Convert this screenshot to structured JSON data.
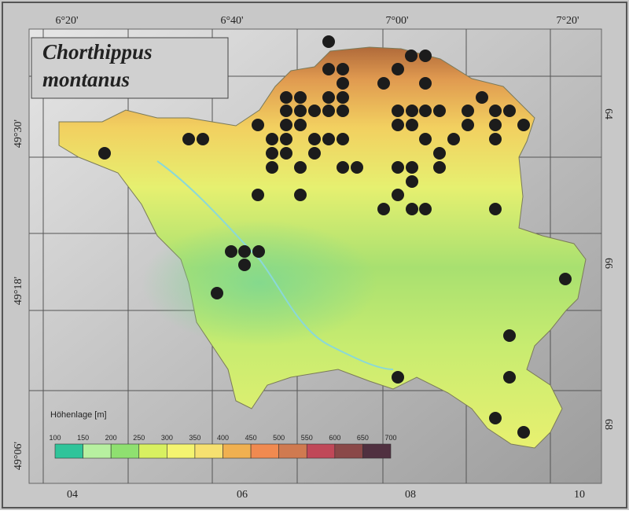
{
  "title_lines": [
    "Chorthippus",
    "montanus"
  ],
  "top_labels": [
    "6°20'",
    "6°40'",
    "7°00'",
    "7°20'"
  ],
  "left_labels": [
    "49°30'",
    "49°18'",
    "49°06'"
  ],
  "bottom_labels": [
    "04",
    "06",
    "08",
    "10"
  ],
  "right_labels": [
    "64",
    "66",
    "68"
  ],
  "legend": {
    "title": "Höhenlage [m]",
    "labels": [
      "100",
      "150",
      "200",
      "250",
      "300",
      "350",
      "400",
      "450",
      "500",
      "550",
      "600",
      "650",
      "700"
    ]
  }
}
